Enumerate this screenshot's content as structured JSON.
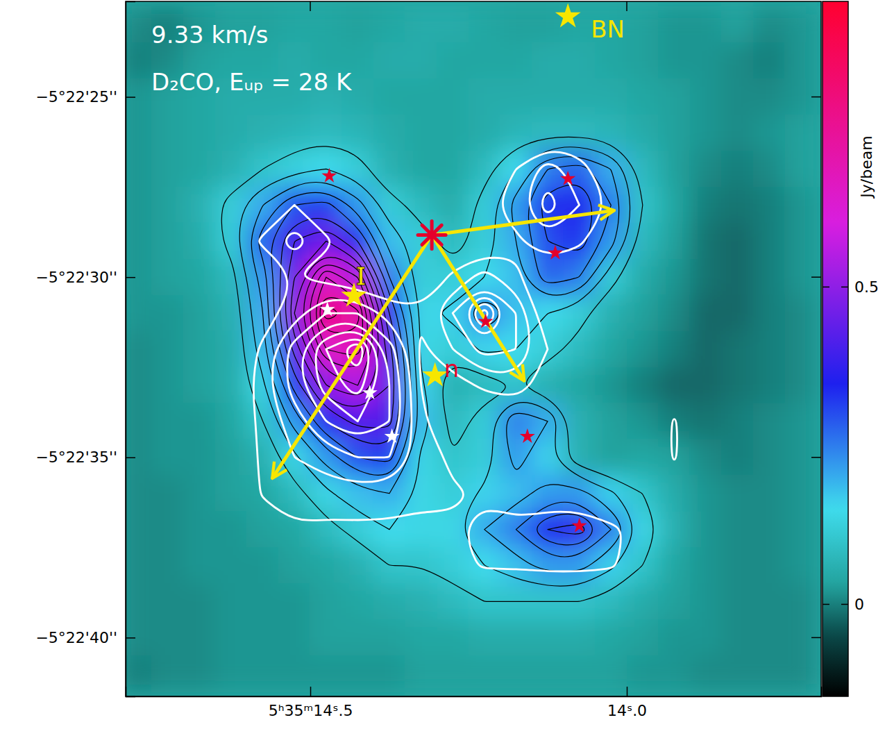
{
  "chart_data": {
    "type": "heatmap",
    "title": "9.33 km/s",
    "subtitle": "D₂CO, Eᵤₚ = 28 K",
    "x": [
      14.775,
      14.725,
      14.675,
      14.625,
      14.575,
      14.525,
      14.475,
      14.425,
      14.375,
      14.325,
      14.275,
      14.225,
      14.175,
      14.125,
      14.075,
      14.025,
      13.975,
      13.925,
      13.875,
      13.825,
      13.775,
      13.725
    ],
    "y": [
      23,
      24,
      25,
      26,
      27,
      28,
      29,
      30,
      31,
      32,
      33,
      34,
      35,
      36,
      37,
      38,
      39,
      40,
      41
    ],
    "z": [
      [
        0.01,
        0.0,
        0.02,
        0.03,
        0.03,
        0.04,
        0.04,
        0.03,
        0.04,
        0.05,
        0.05,
        0.04,
        0.03,
        0.03,
        0.04,
        0.04,
        0.03,
        0.02,
        0.02,
        0.03,
        0.01,
        0.02
      ],
      [
        0.0,
        0.01,
        0.03,
        0.04,
        0.04,
        0.05,
        0.04,
        0.04,
        0.05,
        0.05,
        0.04,
        0.04,
        0.04,
        0.05,
        0.05,
        0.04,
        0.03,
        0.02,
        0.02,
        0.01,
        0.0,
        0.02
      ],
      [
        0.02,
        0.03,
        0.04,
        0.05,
        0.05,
        0.05,
        0.06,
        0.05,
        0.04,
        0.04,
        0.04,
        0.05,
        0.05,
        0.05,
        0.05,
        0.05,
        0.04,
        0.03,
        0.02,
        0.01,
        0.01,
        0.02
      ],
      [
        0.02,
        0.03,
        0.04,
        0.05,
        0.06,
        0.07,
        0.08,
        0.07,
        0.05,
        0.04,
        0.04,
        0.05,
        0.07,
        0.08,
        0.08,
        0.07,
        0.05,
        0.03,
        0.02,
        0.01,
        0.02,
        0.03
      ],
      [
        0.02,
        0.03,
        0.04,
        0.06,
        0.1,
        0.13,
        0.15,
        0.12,
        0.06,
        0.04,
        0.04,
        0.08,
        0.15,
        0.25,
        0.28,
        0.2,
        0.08,
        0.03,
        0.01,
        0.0,
        0.01,
        0.03
      ],
      [
        0.02,
        0.03,
        0.06,
        0.12,
        0.2,
        0.3,
        0.32,
        0.22,
        0.12,
        0.08,
        0.05,
        0.12,
        0.22,
        0.33,
        0.35,
        0.25,
        0.1,
        0.04,
        0.0,
        -0.01,
        0.0,
        0.02
      ],
      [
        0.02,
        0.03,
        0.05,
        0.12,
        0.28,
        0.4,
        0.45,
        0.35,
        0.18,
        0.12,
        0.08,
        0.12,
        0.2,
        0.3,
        0.33,
        0.22,
        0.08,
        0.03,
        -0.01,
        -0.02,
        0.0,
        0.02
      ],
      [
        0.02,
        0.03,
        0.04,
        0.08,
        0.22,
        0.45,
        0.65,
        0.55,
        0.25,
        0.12,
        0.12,
        0.15,
        0.18,
        0.28,
        0.25,
        0.12,
        0.05,
        0.02,
        -0.01,
        -0.02,
        0.0,
        0.02
      ],
      [
        0.02,
        0.02,
        0.03,
        0.06,
        0.2,
        0.5,
        0.78,
        0.72,
        0.35,
        0.14,
        0.16,
        0.24,
        0.18,
        0.15,
        0.12,
        0.06,
        0.03,
        0.01,
        -0.02,
        -0.02,
        0.0,
        0.01
      ],
      [
        0.01,
        0.02,
        0.03,
        0.05,
        0.18,
        0.42,
        0.65,
        0.68,
        0.42,
        0.14,
        0.12,
        0.16,
        0.15,
        0.12,
        0.08,
        0.04,
        0.02,
        0.0,
        -0.02,
        -0.01,
        0.0,
        0.01
      ],
      [
        0.01,
        0.02,
        0.03,
        0.05,
        0.14,
        0.32,
        0.5,
        0.55,
        0.45,
        0.16,
        0.06,
        0.08,
        0.1,
        0.06,
        0.04,
        0.02,
        0.0,
        -0.02,
        -0.02,
        -0.01,
        0.0,
        0.01
      ],
      [
        0.01,
        0.02,
        0.02,
        0.04,
        0.1,
        0.22,
        0.35,
        0.42,
        0.42,
        0.18,
        0.08,
        0.12,
        0.25,
        0.2,
        0.06,
        0.03,
        0.02,
        0.0,
        -0.01,
        0.0,
        0.01,
        0.02
      ],
      [
        0.01,
        0.02,
        0.02,
        0.03,
        0.06,
        0.14,
        0.22,
        0.3,
        0.32,
        0.14,
        0.1,
        0.12,
        0.22,
        0.16,
        0.06,
        0.03,
        0.04,
        0.03,
        0.01,
        0.0,
        0.01,
        0.02
      ],
      [
        0.01,
        0.01,
        0.02,
        0.03,
        0.04,
        0.08,
        0.14,
        0.18,
        0.2,
        0.14,
        0.12,
        0.16,
        0.18,
        0.22,
        0.22,
        0.16,
        0.1,
        0.05,
        0.02,
        0.01,
        0.01,
        0.02
      ],
      [
        0.01,
        0.01,
        0.02,
        0.02,
        0.03,
        0.04,
        0.08,
        0.12,
        0.15,
        0.14,
        0.14,
        0.2,
        0.25,
        0.35,
        0.38,
        0.25,
        0.14,
        0.06,
        0.02,
        0.01,
        0.01,
        0.02
      ],
      [
        0.01,
        0.01,
        0.02,
        0.02,
        0.02,
        0.03,
        0.04,
        0.06,
        0.1,
        0.1,
        0.12,
        0.15,
        0.18,
        0.22,
        0.22,
        0.16,
        0.1,
        0.04,
        0.02,
        0.01,
        0.01,
        0.02
      ],
      [
        0.01,
        0.01,
        0.01,
        0.02,
        0.02,
        0.02,
        0.03,
        0.04,
        0.05,
        0.06,
        0.08,
        0.1,
        0.1,
        0.1,
        0.1,
        0.08,
        0.05,
        0.03,
        0.02,
        0.01,
        0.01,
        0.01
      ],
      [
        0.01,
        0.01,
        0.01,
        0.02,
        0.02,
        0.02,
        0.03,
        0.03,
        0.03,
        0.04,
        0.04,
        0.05,
        0.05,
        0.05,
        0.05,
        0.04,
        0.03,
        0.02,
        0.02,
        0.01,
        0.01,
        0.01
      ],
      [
        0.0,
        0.01,
        0.01,
        0.02,
        0.02,
        0.02,
        0.02,
        0.02,
        0.02,
        0.03,
        0.03,
        0.03,
        0.03,
        0.03,
        0.03,
        0.03,
        0.02,
        0.02,
        0.01,
        0.01,
        0.01,
        0.01
      ]
    ],
    "contour_levels": [
      0.1,
      0.15,
      0.2,
      0.25,
      0.3,
      0.35,
      0.4,
      0.45,
      0.5,
      0.55,
      0.6,
      0.65,
      0.7,
      0.75
    ],
    "overlay_z": [
      [
        0,
        0,
        0,
        0,
        0,
        0,
        0,
        0,
        0,
        0,
        0,
        0,
        0,
        0,
        0,
        0,
        0,
        0,
        0,
        0,
        0,
        0
      ],
      [
        0,
        0,
        0,
        0,
        0,
        0,
        0,
        0,
        0,
        0,
        0,
        0,
        0,
        0,
        0,
        0,
        0,
        0,
        0,
        0,
        0,
        0
      ],
      [
        0,
        0,
        0,
        0,
        0,
        0,
        0,
        0,
        0,
        0,
        0,
        0,
        0,
        0,
        0,
        0,
        0,
        0,
        0,
        0,
        0,
        0
      ],
      [
        0,
        0,
        0,
        0,
        0,
        0,
        0,
        0,
        0,
        0,
        0,
        0,
        0,
        0,
        0,
        0,
        0,
        0,
        0,
        0,
        0,
        0
      ],
      [
        0,
        0,
        0,
        0,
        0,
        0,
        0,
        0,
        0,
        0,
        0,
        0,
        1,
        2.5,
        1.5,
        0,
        0,
        0,
        0,
        0,
        0,
        0
      ],
      [
        0,
        0,
        0,
        0,
        0,
        1,
        0,
        0,
        0,
        0,
        0,
        0.7,
        1.5,
        3.5,
        2,
        0.9,
        0,
        0,
        0,
        0,
        0,
        0
      ],
      [
        0,
        0,
        0,
        0,
        1.2,
        2.5,
        1.2,
        0,
        0,
        0,
        0,
        0,
        0.8,
        1.8,
        1.2,
        0,
        0,
        0,
        0,
        0,
        0,
        0
      ],
      [
        0,
        0,
        0,
        0,
        0,
        1,
        0.6,
        0,
        0,
        0,
        1.2,
        2.5,
        1.2,
        0,
        0,
        0,
        0,
        0,
        0,
        0,
        0,
        0
      ],
      [
        0,
        0,
        0,
        0,
        0.5,
        1.5,
        3,
        3,
        1.5,
        1.2,
        3,
        6.5,
        3,
        0,
        0,
        0,
        0,
        0,
        0,
        0,
        0,
        0
      ],
      [
        0,
        0,
        0,
        0,
        1.2,
        3.5,
        6,
        8,
        3.5,
        0.8,
        2,
        3.5,
        3,
        1,
        0,
        0,
        0,
        0,
        0,
        0,
        0,
        0
      ],
      [
        0,
        0,
        0,
        0,
        1.5,
        3.5,
        5.5,
        6.5,
        4,
        1,
        0.5,
        1.2,
        1.5,
        0.5,
        0,
        0,
        0,
        0,
        0,
        0,
        0,
        0
      ],
      [
        0,
        0,
        0,
        0,
        1.3,
        2.5,
        4,
        5,
        4,
        1.2,
        0,
        0,
        0,
        0,
        0,
        0,
        0,
        1.1,
        0,
        0,
        0,
        0
      ],
      [
        0,
        0,
        0,
        0,
        1.2,
        2,
        2.5,
        3,
        3,
        1.5,
        0.8,
        0,
        0,
        0,
        0,
        0,
        0,
        1.1,
        0,
        0,
        0,
        0
      ],
      [
        0,
        0,
        0,
        0,
        1.1,
        1.4,
        1.5,
        1.6,
        1.5,
        1.2,
        1.1,
        0.9,
        0.6,
        0,
        0,
        0,
        0,
        0,
        0,
        0,
        0,
        0
      ],
      [
        0,
        0,
        0,
        0,
        0.4,
        0.9,
        0.8,
        0.8,
        0.8,
        0.8,
        0.9,
        1.2,
        1.2,
        2,
        2,
        1.2,
        0.7,
        0,
        0,
        0,
        0,
        0
      ],
      [
        0,
        0,
        0,
        0,
        0,
        0,
        0,
        0,
        0,
        0,
        0.7,
        1.1,
        1.1,
        1.2,
        1.2,
        1.1,
        0.6,
        0,
        0,
        0,
        0,
        0
      ],
      [
        0,
        0,
        0,
        0,
        0,
        0,
        0,
        0,
        0,
        0,
        0,
        0,
        0,
        0,
        0,
        0,
        0,
        0,
        0,
        0,
        0,
        0
      ],
      [
        0,
        0,
        0,
        0,
        0,
        0,
        0,
        0,
        0,
        0,
        0,
        0,
        0,
        0,
        0,
        0,
        0,
        0,
        0,
        0,
        0,
        0
      ],
      [
        0,
        0,
        0,
        0,
        0,
        0,
        0,
        0,
        0,
        0,
        0,
        0,
        0,
        0,
        0,
        0,
        0,
        0,
        0,
        0,
        0,
        0
      ]
    ],
    "overlay_levels": [
      1,
      2,
      3,
      4,
      5,
      6,
      7
    ],
    "xlim": [
      14.7917,
      13.693
    ],
    "ylim": [
      22.35,
      41.63
    ],
    "xticks": [
      {
        "value": 14.5,
        "label": "5ʰ35ᵐ14ˢ.5"
      },
      {
        "value": 14.0,
        "label": "14ˢ.0"
      }
    ],
    "yticks": [
      {
        "value": 25,
        "label": "−5°22'25''"
      },
      {
        "value": 30,
        "label": "−5°22'30''"
      },
      {
        "value": 35,
        "label": "−5°22'35''"
      },
      {
        "value": 40,
        "label": "−5°22'40''"
      }
    ],
    "colorbar": {
      "label": "Jy/beam",
      "lim": [
        -0.145,
        0.95
      ],
      "ticks": [
        0,
        0.5
      ]
    },
    "markers": [
      {
        "color": "#e4002b",
        "marker": "star",
        "x": [
          14.47,
          14.093,
          14.113,
          14.223,
          14.157,
          14.075
        ],
        "y": [
          27.19,
          27.27,
          29.33,
          31.23,
          34.42,
          36.9
        ]
      },
      {
        "color": "#ffffff",
        "marker": "star",
        "x": [
          14.473,
          14.406,
          14.371
        ],
        "y": [
          30.9,
          33.21,
          34.42
        ]
      }
    ],
    "sources": [
      {
        "label": "BN",
        "x": 14.093,
        "y": 22.77,
        "marker": "star",
        "colors": [
          "#f7e600",
          "#f7e600"
        ]
      },
      {
        "label": "I",
        "x": 14.431,
        "y": 30.52,
        "marker": "star",
        "colors": [
          "#f7e600",
          "#f7e600"
        ]
      },
      {
        "label": "n",
        "x": 14.303,
        "y": 32.73,
        "marker": "star",
        "colors": [
          "#f7e600",
          "#e4002b"
        ]
      }
    ],
    "center": {
      "x": 14.308,
      "y": 28.83,
      "marker": "asterisk",
      "color": "#e4002b"
    },
    "arrows": {
      "color": "#f7e600",
      "to_x": [
        14.02,
        14.162,
        14.56
      ],
      "to_y": [
        28.15,
        32.88,
        35.58
      ]
    }
  }
}
